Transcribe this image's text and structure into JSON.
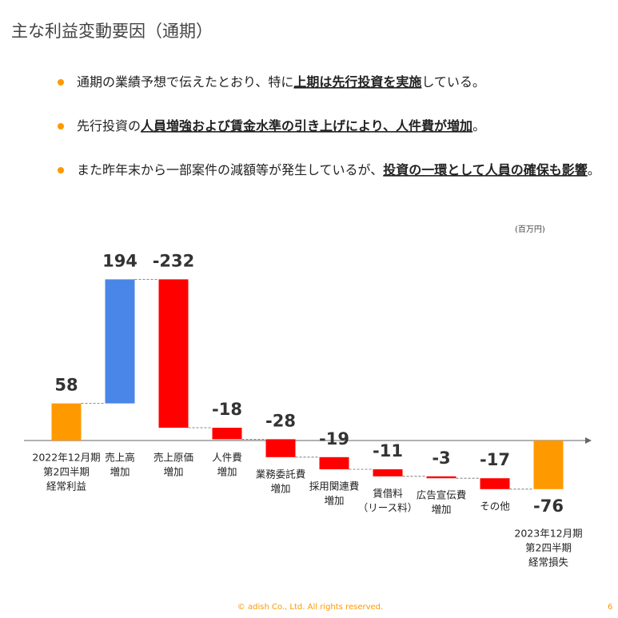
{
  "header": {
    "title": "主な利益変動要因（通期）"
  },
  "bullets": [
    [
      {
        "text": "通期の業績予想で伝えたとおり、特に",
        "bold": false
      },
      {
        "text": "上期は先行投資を実施",
        "bold": true
      },
      {
        "text": "している。",
        "bold": false
      }
    ],
    [
      {
        "text": "先行投資の",
        "bold": false
      },
      {
        "text": "人員増強および賃金水準の引き上げにより、人件費が増加",
        "bold": true
      },
      {
        "text": "。",
        "bold": false
      }
    ],
    [
      {
        "text": "また昨年末から一部案件の減額等が発生しているが、",
        "bold": false
      },
      {
        "text": "投資の一環として人員の確保も影響",
        "bold": true
      },
      {
        "text": "。",
        "bold": false
      }
    ]
  ],
  "chart_data": {
    "type": "waterfall",
    "unit": "(百万円)",
    "categories": [
      [
        "2022年12月期",
        "第2四半期",
        "経常利益"
      ],
      [
        "売上高",
        "増加"
      ],
      [
        "売上原価",
        "増加"
      ],
      [
        "人件費",
        "増加"
      ],
      [
        "業務委託費",
        "増加"
      ],
      [
        "採用関連費",
        "増加"
      ],
      [
        "賃借料",
        "（リース料）"
      ],
      [
        "広告宣伝費",
        "増加"
      ],
      [
        "その他"
      ],
      [
        "2023年12月期",
        "第2四半期",
        "経常損失"
      ]
    ],
    "values": [
      58,
      194,
      -232,
      -18,
      -28,
      -19,
      -11,
      -3,
      -17,
      -76
    ],
    "measure": [
      "absolute",
      "relative",
      "relative",
      "relative",
      "relative",
      "relative",
      "relative",
      "relative",
      "relative",
      "total"
    ],
    "colors": {
      "total": "#ff9900",
      "increase": "#4a86e8",
      "decrease": "#ff0000"
    },
    "ylim": [
      -100,
      260
    ]
  },
  "footer": {
    "copyright": "© adish Co., Ltd. All rights reserved.",
    "page": "6"
  }
}
